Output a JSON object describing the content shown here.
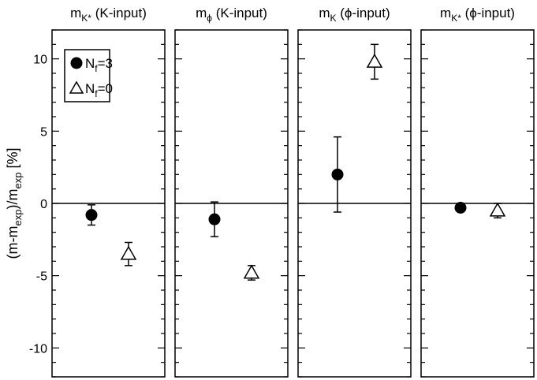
{
  "chart_data": {
    "type": "scatter",
    "ylabel": {
      "base": "(m-m",
      "sub1": "exp",
      "mid": ")/m",
      "sub2": "exp",
      "tail": " [%]"
    },
    "ylim": [
      -12,
      12
    ],
    "yticks": [
      -10,
      -5,
      0,
      5,
      10
    ],
    "yticklabels": [
      "-10",
      "-5",
      "0",
      "5",
      "10"
    ],
    "zero_line": true,
    "legend": {
      "placement": "top-left of first panel",
      "entries": [
        {
          "marker": "filled-circle",
          "base": "N",
          "sub": "f",
          "tail": "=3"
        },
        {
          "marker": "open-triangle",
          "base": "N",
          "sub": "f",
          "tail": "=0"
        }
      ]
    },
    "panels": [
      {
        "title": {
          "base": "m",
          "sub": "K*",
          "tail": " (K-input)"
        },
        "points": [
          {
            "series": "Nf=3",
            "y": -0.8,
            "yerr": 0.7
          },
          {
            "series": "Nf=0",
            "y": -3.5,
            "yerr": 0.8
          }
        ]
      },
      {
        "title": {
          "base": "m",
          "sub": "ϕ",
          "tail": " (K-input)"
        },
        "points": [
          {
            "series": "Nf=3",
            "y": -1.1,
            "yerr": 1.2
          },
          {
            "series": "Nf=0",
            "y": -4.8,
            "yerr": 0.5
          }
        ]
      },
      {
        "title": {
          "base": "m",
          "sub": "K",
          "tail": " (ϕ-input)"
        },
        "points": [
          {
            "series": "Nf=3",
            "y": 2.0,
            "yerr": 2.6
          },
          {
            "series": "Nf=0",
            "y": 9.8,
            "yerr": 1.2
          }
        ]
      },
      {
        "title": {
          "base": "m",
          "sub": "K*",
          "tail": " (ϕ-input)"
        },
        "points": [
          {
            "series": "Nf=3",
            "y": -0.3,
            "yerr": 0.0
          },
          {
            "series": "Nf=0",
            "y": -0.5,
            "yerr": 0.5
          }
        ]
      }
    ]
  }
}
